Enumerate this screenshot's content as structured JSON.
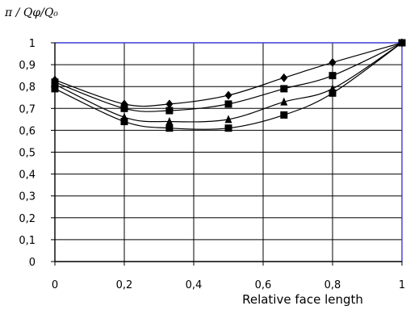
{
  "chart_data": {
    "type": "line",
    "title": "",
    "xlabel": "Relative face length",
    "ylabel": "π / Qφ/Q₀",
    "xlim": [
      0,
      1
    ],
    "ylim": [
      0,
      1
    ],
    "x_ticks": [
      "0",
      "0,2",
      "0,4",
      "0,6",
      "0,8",
      "1"
    ],
    "y_ticks": [
      "0",
      "0,1",
      "0,2",
      "0,3",
      "0,4",
      "0,5",
      "0,6",
      "0,7",
      "0,8",
      "0,9",
      "1"
    ],
    "grid": true,
    "legend": "none",
    "frame_color": "#3b3bd6",
    "series": [
      {
        "marker": "diamond",
        "x": [
          0,
          0.2,
          0.33,
          0.5,
          0.66,
          0.8,
          1
        ],
        "y": [
          0.83,
          0.72,
          0.72,
          0.76,
          0.84,
          0.91,
          1.0
        ]
      },
      {
        "marker": "square",
        "x": [
          0,
          0.2,
          0.33,
          0.5,
          0.66,
          0.8,
          1
        ],
        "y": [
          0.82,
          0.7,
          0.69,
          0.72,
          0.79,
          0.85,
          1.0
        ]
      },
      {
        "marker": "triangle",
        "x": [
          0,
          0.2,
          0.33,
          0.5,
          0.66,
          0.8,
          1
        ],
        "y": [
          0.81,
          0.66,
          0.64,
          0.65,
          0.73,
          0.79,
          1.0
        ]
      },
      {
        "marker": "square",
        "x": [
          0,
          0.2,
          0.33,
          0.5,
          0.66,
          0.8,
          1
        ],
        "y": [
          0.79,
          0.64,
          0.61,
          0.61,
          0.67,
          0.77,
          1.0
        ]
      }
    ]
  }
}
